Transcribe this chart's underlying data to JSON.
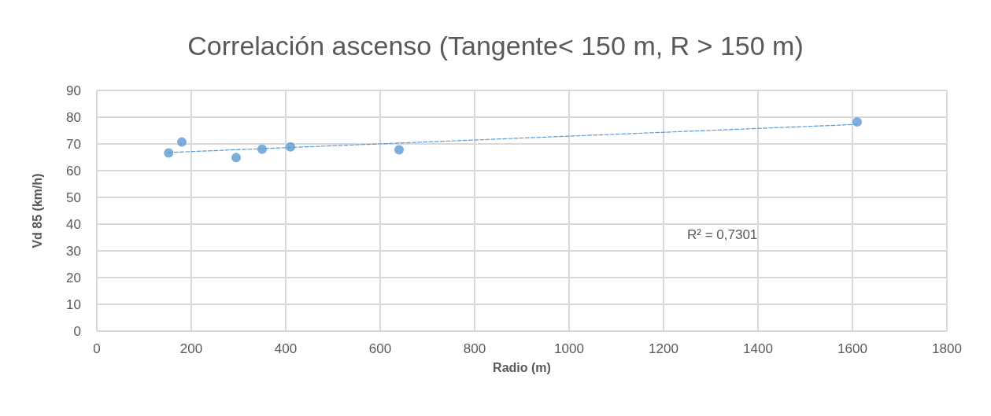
{
  "chart_data": {
    "type": "scatter",
    "title": "Correlación ascenso (Tangente< 150 m, R > 150 m)",
    "xlabel": "Radio (m)",
    "ylabel": "Vd 85 (km/h)",
    "series": [
      {
        "color": "#5b9bd5",
        "marker": "circle",
        "x": [
          152,
          180,
          295,
          350,
          410,
          640,
          1610
        ],
        "values": [
          66.6,
          70.7,
          64.9,
          68.0,
          68.9,
          67.8,
          78.2
        ]
      },
      {
        "type": "line",
        "color": "#5b9bd5",
        "line_style": "dashed",
        "marker": "none",
        "x": [
          152,
          1610
        ],
        "values": [
          66.8,
          77.3
        ]
      }
    ],
    "annotations": [
      "R² = 0,7301"
    ],
    "xlim": [
      0,
      1800
    ],
    "xticks": [
      0,
      200,
      400,
      600,
      800,
      1000,
      1200,
      1400,
      1600,
      1800
    ],
    "ylim": [
      0,
      90
    ],
    "yticks": [
      0,
      10,
      20,
      30,
      40,
      50,
      60,
      70,
      80,
      90
    ],
    "grid": true
  }
}
